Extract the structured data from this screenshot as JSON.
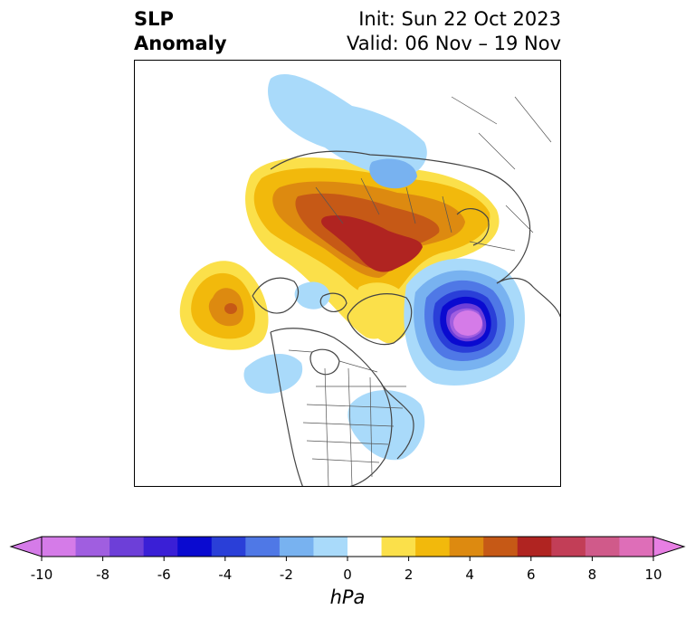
{
  "header": {
    "title_line1": "SLP",
    "title_line2": "Anomaly",
    "init_text": "Init: Sun 22 Oct 2023",
    "valid_text": "Valid: 06 Nov – 19 Nov"
  },
  "colorbar": {
    "unit": "hPa",
    "tick_labels": [
      "-10",
      "-8",
      "-6",
      "-4",
      "-2",
      "0",
      "2",
      "4",
      "6",
      "8",
      "10"
    ],
    "bins": [
      {
        "color": "#d57be8"
      },
      {
        "color": "#a05ee0"
      },
      {
        "color": "#6d3fd8"
      },
      {
        "color": "#3a1fd6"
      },
      {
        "color": "#0a0ad0"
      },
      {
        "color": "#2a3fd8"
      },
      {
        "color": "#4f78e6"
      },
      {
        "color": "#78b2f0"
      },
      {
        "color": "#a9dafa"
      },
      {
        "color": "#ffffff"
      },
      {
        "color": "#fbe04a"
      },
      {
        "color": "#f2b90c"
      },
      {
        "color": "#dd8a10"
      },
      {
        "color": "#c65916"
      },
      {
        "color": "#b02421"
      },
      {
        "color": "#c23e57"
      },
      {
        "color": "#d05a8a"
      },
      {
        "color": "#de6eb8"
      }
    ],
    "under_color": "#d57be8",
    "over_color": "#e77fe3"
  },
  "map": {
    "projection": "north-polar stereographic",
    "features": [
      "coastlines",
      "country-borders",
      "state-province-borders"
    ]
  }
}
